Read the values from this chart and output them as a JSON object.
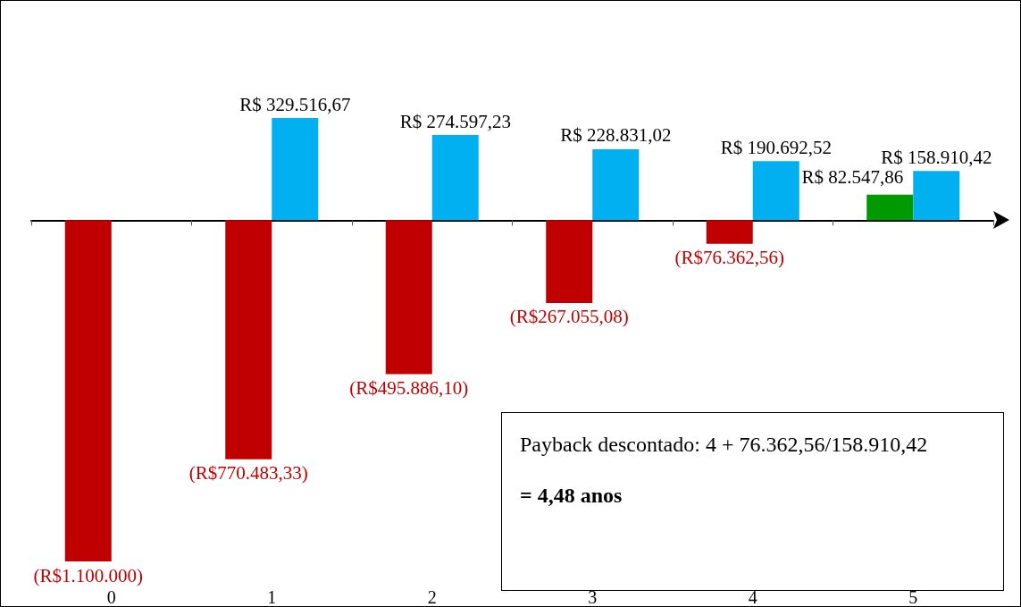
{
  "chart_data": {
    "type": "bar",
    "categories": [
      "0",
      "1",
      "2",
      "3",
      "4",
      "5"
    ],
    "series": [
      {
        "color": "#c00000",
        "colors": [
          "#c00000",
          "#c00000",
          "#c00000",
          "#c00000",
          "#c00000",
          "#009900"
        ],
        "values": [
          -1100000,
          -770483.33,
          -495886.1,
          -267055.08,
          -76362.56,
          82547.86
        ],
        "value_labels": [
          "(R$1.100.000)",
          "(R$770.483,33)",
          "(R$495.886,10)",
          "(R$267.055,08)",
          "(R$76.362,56)",
          "R$ 82.547,86"
        ]
      },
      {
        "color": "#00b0f0",
        "values": [
          null,
          329516.67,
          274597.23,
          228831.02,
          190692.52,
          158910.42
        ],
        "value_labels": [
          null,
          "R$ 329.516,67",
          "R$ 274.597,23",
          "R$ 228.831,02",
          "R$ 190.692,52",
          "R$ 158.910,42"
        ]
      }
    ],
    "annotations": [
      "Payback descontado: 4 + 76.362,56/158.910,42",
      "= 4,48 anos"
    ],
    "grid": false
  }
}
